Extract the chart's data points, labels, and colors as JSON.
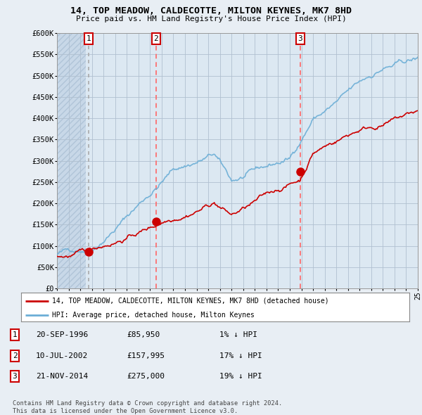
{
  "title": "14, TOP MEADOW, CALDECOTTE, MILTON KEYNES, MK7 8HD",
  "subtitle": "Price paid vs. HM Land Registry's House Price Index (HPI)",
  "ylim": [
    0,
    600000
  ],
  "yticks": [
    0,
    50000,
    100000,
    150000,
    200000,
    250000,
    300000,
    350000,
    400000,
    450000,
    500000,
    550000,
    600000
  ],
  "ytick_labels": [
    "£0",
    "£50K",
    "£100K",
    "£150K",
    "£200K",
    "£250K",
    "£300K",
    "£350K",
    "£400K",
    "£450K",
    "£500K",
    "£550K",
    "£600K"
  ],
  "sale_dates": [
    1996.72,
    2002.52,
    2014.9
  ],
  "sale_prices": [
    85950,
    157995,
    275000
  ],
  "sale_labels": [
    "1",
    "2",
    "3"
  ],
  "hpi_color": "#6baed6",
  "price_color": "#cc0000",
  "sale1_vline_color": "#aaaaaa",
  "sale23_vline_color": "#ff6666",
  "legend_label_price": "14, TOP MEADOW, CALDECOTTE, MILTON KEYNES, MK7 8HD (detached house)",
  "legend_label_hpi": "HPI: Average price, detached house, Milton Keynes",
  "table_rows": [
    [
      "1",
      "20-SEP-1996",
      "£85,950",
      "1% ↓ HPI"
    ],
    [
      "2",
      "10-JUL-2002",
      "£157,995",
      "17% ↓ HPI"
    ],
    [
      "3",
      "21-NOV-2014",
      "£275,000",
      "19% ↓ HPI"
    ]
  ],
  "footnote": "Contains HM Land Registry data © Crown copyright and database right 2024.\nThis data is licensed under the Open Government Licence v3.0.",
  "bg_color": "#e8eef4",
  "plot_bg_color": "#dce8f0",
  "hatch_color": "#c8d4e0"
}
